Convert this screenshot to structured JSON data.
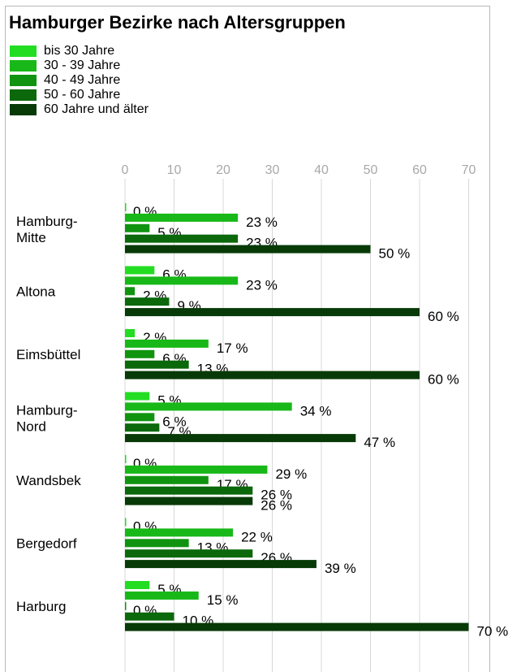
{
  "title": "Hamburger Bezirke nach Altersgruppen",
  "legend": [
    {
      "label": "bis 30 Jahre",
      "color": "#22dd22"
    },
    {
      "label": "30 - 39 Jahre",
      "color": "#18b818"
    },
    {
      "label": "40 - 49 Jahre",
      "color": "#109410"
    },
    {
      "label": "50 - 60 Jahre",
      "color": "#0b680b"
    },
    {
      "label": "60 Jahre und älter",
      "color": "#073a07"
    }
  ],
  "chart_data": {
    "type": "bar",
    "orientation": "horizontal",
    "title": "Hamburger Bezirke nach Altersgruppen",
    "xlim": [
      0,
      70
    ],
    "ticks": [
      0,
      10,
      20,
      30,
      40,
      50,
      60,
      70
    ],
    "grid": true,
    "legend_position": "top-left",
    "value_suffix": " %",
    "categories": [
      {
        "name": "Hamburg-",
        "name2": "Mitte"
      },
      {
        "name": "Altona",
        "name2": ""
      },
      {
        "name": "Eimsbüttel",
        "name2": ""
      },
      {
        "name": "Hamburg-",
        "name2": "Nord"
      },
      {
        "name": "Wandsbek",
        "name2": ""
      },
      {
        "name": "Bergedorf",
        "name2": ""
      },
      {
        "name": "Harburg",
        "name2": ""
      }
    ],
    "series": [
      {
        "name": "bis 30 Jahre",
        "color": "#22dd22",
        "values": [
          0,
          6,
          2,
          5,
          0,
          0,
          5
        ]
      },
      {
        "name": "30 - 39 Jahre",
        "color": "#18b818",
        "values": [
          23,
          23,
          17,
          34,
          29,
          22,
          15
        ]
      },
      {
        "name": "40 - 49 Jahre",
        "color": "#109410",
        "values": [
          5,
          2,
          6,
          6,
          17,
          13,
          0
        ]
      },
      {
        "name": "50 - 60 Jahre",
        "color": "#0b680b",
        "values": [
          23,
          9,
          13,
          7,
          26,
          26,
          10
        ]
      },
      {
        "name": "60 Jahre und älter",
        "color": "#073a07",
        "values": [
          50,
          60,
          60,
          47,
          26,
          39,
          70
        ]
      }
    ]
  }
}
